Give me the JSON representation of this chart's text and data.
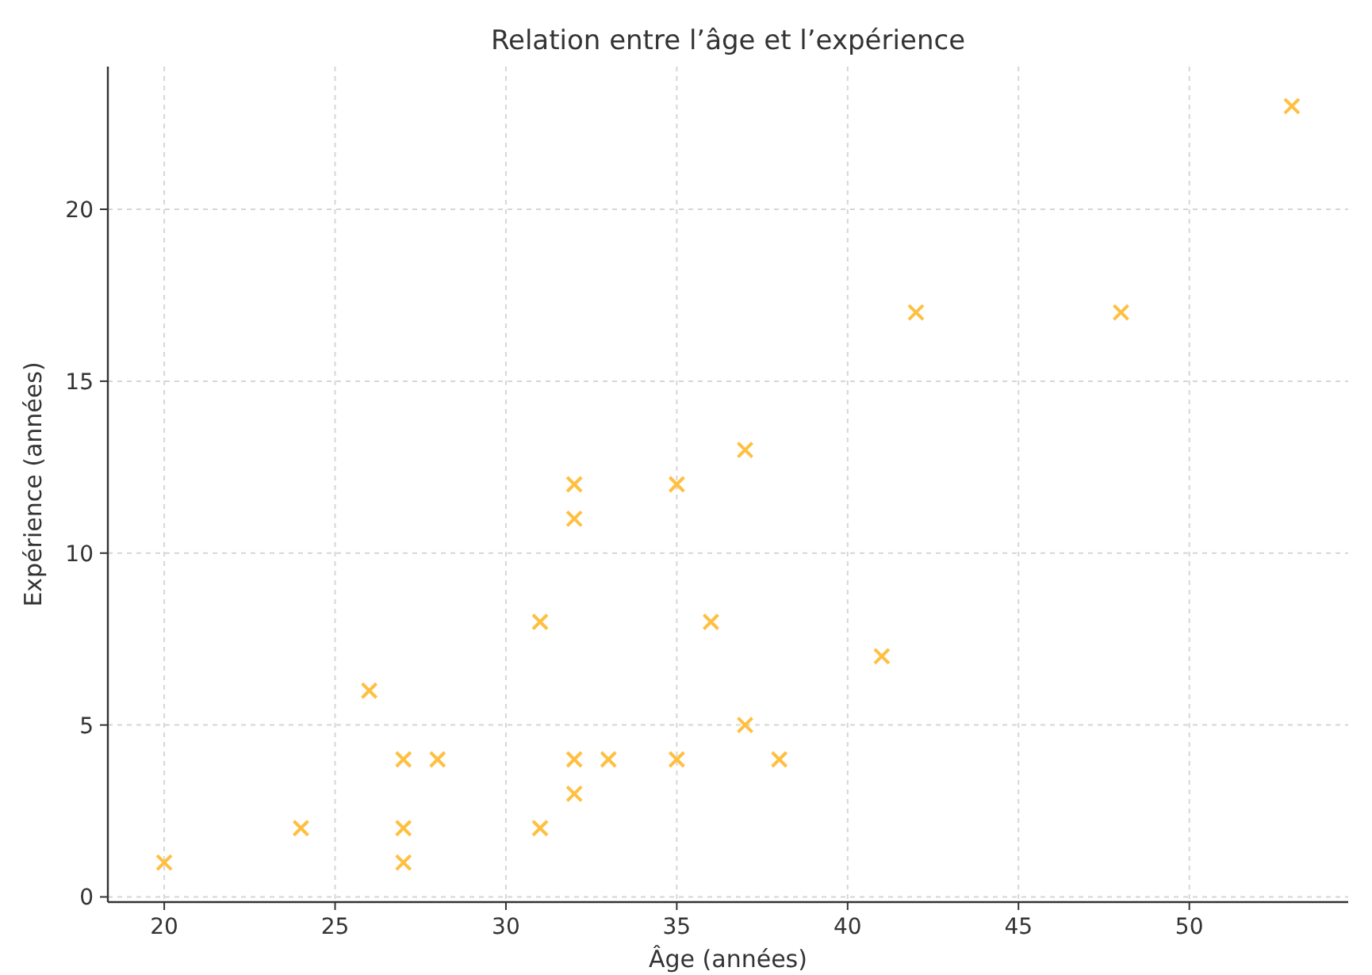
{
  "chart_data": {
    "type": "scatter",
    "title": "Relation entre l’âge et l’expérience",
    "xlabel": "Âge (années)",
    "ylabel": "Expérience (années)",
    "x": [
      20,
      24,
      26,
      27,
      27,
      27,
      28,
      31,
      31,
      32,
      32,
      32,
      32,
      33,
      35,
      35,
      36,
      37,
      37,
      38,
      41,
      42,
      48,
      53
    ],
    "series": [
      {
        "color": "#ffbf40",
        "values": [
          1,
          2,
          6,
          4,
          2,
          1,
          4,
          8,
          2,
          12,
          11,
          4,
          3,
          4,
          12,
          4,
          8,
          13,
          5,
          4,
          7,
          17,
          17,
          23
        ]
      }
    ],
    "xlim": [
      18.35,
      54.65
    ],
    "xticks": [
      20,
      25,
      30,
      35,
      40,
      45,
      50
    ],
    "ylim": [
      -0.15,
      24.15
    ],
    "yticks": [
      0,
      5,
      10,
      15,
      20
    ],
    "grid": true,
    "marker": "cross"
  }
}
